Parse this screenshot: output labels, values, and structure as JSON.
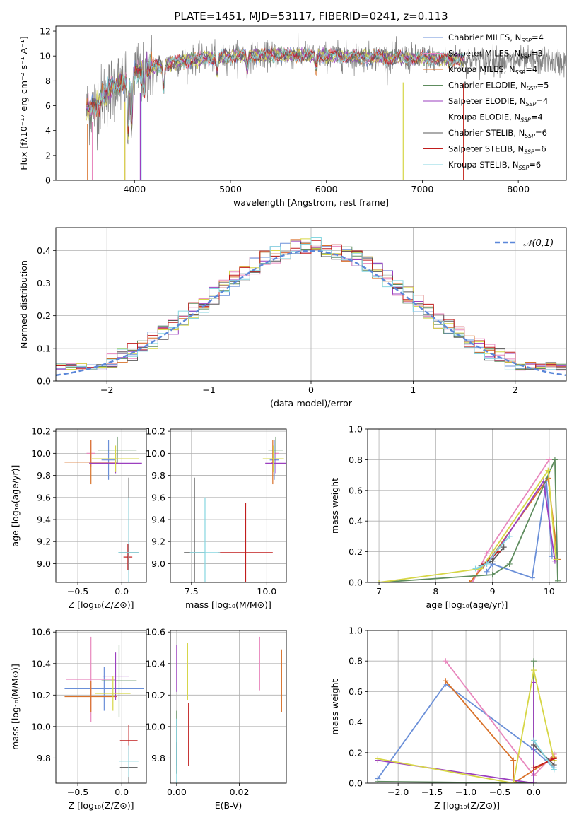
{
  "colors": {
    "Chabrier MILES": "#6a8fd8",
    "Salpeter MILES": "#e887bd",
    "Kroupa MILES": "#d9722a",
    "Chabrier ELODIE": "#5e8c5e",
    "Salpeter ELODIE": "#9b3fbf",
    "Kroupa ELODIE": "#d6d646",
    "Chabrier STELIB": "#5a5a5a",
    "Salpeter STELIB": "#c11d1d",
    "Kroupa STELIB": "#86d6e0",
    "data": "#808080",
    "normal": "#5b87d9"
  },
  "chart_data": [
    {
      "id": "spectrum",
      "type": "line",
      "title": "PLATE=1451, MJD=53117, FIBERID=0241, z=0.113",
      "xlabel": "wavelength [Angstrom, rest frame]",
      "ylabel": "Flux [fλ10⁻¹⁷ erg cm⁻² s⁻¹ A⁻¹]",
      "xlim": [
        3180,
        8500
      ],
      "ylim": [
        0,
        12.4
      ],
      "xticks": [
        4000,
        5000,
        6000,
        7000,
        8000
      ],
      "yticks": [
        0,
        2,
        4,
        6,
        8,
        10,
        12
      ],
      "legend_position": "right",
      "legend": [
        {
          "name": "Chabrier MILES",
          "nssp": "4"
        },
        {
          "name": "Salpeter MILES",
          "nssp": "3"
        },
        {
          "name": "Kroupa MILES",
          "nssp": "4"
        },
        {
          "name": "Chabrier ELODIE",
          "nssp": "5"
        },
        {
          "name": "Salpeter ELODIE",
          "nssp": "4"
        },
        {
          "name": "Kroupa ELODIE",
          "nssp": "4"
        },
        {
          "name": "Chabrier STELIB",
          "nssp": "6"
        },
        {
          "name": "Salpeter STELIB",
          "nssp": "6"
        },
        {
          "name": "Kroupa STELIB",
          "nssp": "6"
        }
      ],
      "continuum": [
        {
          "x": 3500,
          "y": 5.6
        },
        {
          "x": 3600,
          "y": 6.0
        },
        {
          "x": 3700,
          "y": 7.0
        },
        {
          "x": 3800,
          "y": 7.6
        },
        {
          "x": 3900,
          "y": 7.9
        },
        {
          "x": 4000,
          "y": 8.6
        },
        {
          "x": 4200,
          "y": 9.1
        },
        {
          "x": 4500,
          "y": 9.6
        },
        {
          "x": 5000,
          "y": 10.0
        },
        {
          "x": 5500,
          "y": 10.1
        },
        {
          "x": 6000,
          "y": 10.0
        },
        {
          "x": 6500,
          "y": 9.9
        },
        {
          "x": 7000,
          "y": 9.8
        },
        {
          "x": 7500,
          "y": 9.7
        },
        {
          "x": 8000,
          "y": 9.6
        },
        {
          "x": 8500,
          "y": 9.5
        }
      ],
      "data_range": [
        3500,
        8500
      ],
      "model_range": [
        3500,
        7430
      ],
      "absorption_features": [
        {
          "x": 3934,
          "depth": 0.55
        },
        {
          "x": 3969,
          "depth": 0.5
        },
        {
          "x": 4102,
          "depth": 0.2
        },
        {
          "x": 4304,
          "depth": 0.2
        },
        {
          "x": 4861,
          "depth": 0.12
        },
        {
          "x": 5175,
          "depth": 0.12
        },
        {
          "x": 5893,
          "depth": 0.1
        }
      ]
    },
    {
      "id": "residuals",
      "type": "step",
      "xlabel": "(data-model)/error",
      "ylabel": "Normed distribution",
      "xlim": [
        -2.5,
        2.5
      ],
      "ylim": [
        0,
        0.47
      ],
      "xticks": [
        -2,
        -1,
        0,
        1,
        2
      ],
      "yticks": [
        0,
        0.1,
        0.2,
        0.3,
        0.4
      ],
      "grid": true,
      "legend_position": "top-right",
      "reference_curve": {
        "label": "𝒩(0,1)",
        "mean": 0,
        "sigma": 1
      },
      "bin_width": 0.1
    },
    {
      "id": "age_vs_Z",
      "type": "errorbar",
      "xlabel": "Z [log₁₀(Z/Z⊙)]",
      "ylabel": "age  [log₁₀(age/yr)]",
      "xlim": [
        -0.75,
        0.28
      ],
      "ylim": [
        8.83,
        10.22
      ],
      "xticks": [
        -0.5,
        0.0
      ],
      "yticks": [
        9.0,
        9.2,
        9.4,
        9.6,
        9.8,
        10.0,
        10.2
      ],
      "grid": true,
      "points": [
        {
          "model": "Chabrier MILES",
          "x": -0.15,
          "xerr": 0.08,
          "y": 9.94,
          "yerr": 0.18
        },
        {
          "model": "Salpeter MILES",
          "x": -0.35,
          "xerr": 0.05,
          "y": 10.0,
          "yerr": 0.12
        },
        {
          "model": "Kroupa MILES",
          "x": -0.35,
          "xerr": 0.3,
          "y": 9.92,
          "yerr": 0.2
        },
        {
          "model": "Chabrier ELODIE",
          "x": -0.05,
          "xerr": 0.22,
          "y": 10.03,
          "yerr": 0.12
        },
        {
          "model": "Salpeter ELODIE",
          "x": -0.07,
          "xerr": 0.3,
          "y": 9.91,
          "yerr": 0.09
        },
        {
          "model": "Kroupa ELODIE",
          "x": -0.07,
          "xerr": 0.27,
          "y": 9.95,
          "yerr": 0.12
        },
        {
          "model": "Chabrier STELIB",
          "x": 0.08,
          "xerr": 0.11,
          "y": 9.1,
          "yerr": 0.68
        },
        {
          "model": "Salpeter STELIB",
          "x": 0.07,
          "xerr": 0.05,
          "y": 9.06,
          "yerr": 0.12
        },
        {
          "model": "Kroupa STELIB",
          "x": 0.08,
          "xerr": 0.12,
          "y": 9.1,
          "yerr": 0.5
        }
      ]
    },
    {
      "id": "age_vs_mass",
      "type": "errorbar",
      "xlabel": "mass [log₁₀(M/M⊙)]",
      "xlim": [
        6.8,
        10.65
      ],
      "ylim": [
        8.83,
        10.22
      ],
      "xticks": [
        7.5,
        10.0
      ],
      "yticks": [
        9.0,
        9.2,
        9.4,
        9.6,
        9.8,
        10.0,
        10.2
      ],
      "grid": true,
      "points": [
        {
          "model": "Chabrier MILES",
          "x": 10.25,
          "xerr": 0.15,
          "y": 9.94,
          "yerr": 0.18
        },
        {
          "model": "Salpeter MILES",
          "x": 10.3,
          "xerr": 0.1,
          "y": 10.0,
          "yerr": 0.12
        },
        {
          "model": "Kroupa MILES",
          "x": 10.2,
          "xerr": 0.05,
          "y": 9.92,
          "yerr": 0.2
        },
        {
          "model": "Chabrier ELODIE",
          "x": 10.3,
          "xerr": 0.25,
          "y": 10.03,
          "yerr": 0.12
        },
        {
          "model": "Salpeter ELODIE",
          "x": 10.3,
          "xerr": 0.35,
          "y": 9.91,
          "yerr": 0.09
        },
        {
          "model": "Kroupa ELODIE",
          "x": 10.22,
          "xerr": 0.35,
          "y": 9.95,
          "yerr": 0.12
        },
        {
          "model": "Chabrier STELIB",
          "x": 7.6,
          "xerr": 0.35,
          "y": 9.1,
          "yerr": 0.68
        },
        {
          "model": "Salpeter STELIB",
          "x": 9.3,
          "xerr": 0.9,
          "y": 9.1,
          "yerr": 0.45
        },
        {
          "model": "Kroupa STELIB",
          "x": 7.95,
          "xerr": 0.5,
          "y": 9.1,
          "yerr": 0.5
        }
      ]
    },
    {
      "id": "mass_weight_vs_age",
      "type": "line",
      "xlabel": "age  [log₁₀(age/yr)]",
      "ylabel": "mass weight",
      "xlim": [
        6.8,
        10.3
      ],
      "ylim": [
        0,
        1.0
      ],
      "xticks": [
        7,
        8,
        9,
        10
      ],
      "yticks": [
        0.0,
        0.2,
        0.4,
        0.6,
        0.8,
        1.0
      ],
      "grid": true,
      "series": [
        {
          "model": "Chabrier MILES",
          "points": [
            [
              8.9,
              0.07
            ],
            [
              9.0,
              0.12
            ],
            [
              9.7,
              0.03
            ],
            [
              9.95,
              0.66
            ],
            [
              10.05,
              0.17
            ]
          ]
        },
        {
          "model": "Salpeter MILES",
          "points": [
            [
              8.65,
              0.0
            ],
            [
              8.9,
              0.19
            ],
            [
              10.0,
              0.8
            ]
          ]
        },
        {
          "model": "Kroupa MILES",
          "points": [
            [
              8.6,
              0.0
            ],
            [
              8.95,
              0.15
            ],
            [
              9.98,
              0.68
            ],
            [
              10.15,
              0.15
            ]
          ]
        },
        {
          "model": "Chabrier ELODIE",
          "points": [
            [
              7.0,
              0.0
            ],
            [
              9.0,
              0.05
            ],
            [
              9.3,
              0.12
            ],
            [
              10.1,
              0.8
            ],
            [
              10.15,
              0.01
            ]
          ]
        },
        {
          "model": "Salpeter ELODIE",
          "points": [
            [
              8.8,
              0.1
            ],
            [
              9.0,
              0.16
            ],
            [
              9.9,
              0.66
            ],
            [
              10.1,
              0.14
            ]
          ]
        },
        {
          "model": "Kroupa ELODIE",
          "points": [
            [
              7.0,
              0.0
            ],
            [
              8.8,
              0.09
            ],
            [
              9.98,
              0.73
            ],
            [
              10.12,
              0.15
            ]
          ]
        },
        {
          "model": "Chabrier STELIB",
          "points": [
            [
              8.8,
              0.11
            ],
            [
              9.0,
              0.14
            ],
            [
              9.2,
              0.23
            ]
          ]
        },
        {
          "model": "Salpeter STELIB",
          "points": [
            [
              8.85,
              0.12
            ],
            [
              9.1,
              0.2
            ]
          ]
        },
        {
          "model": "Kroupa STELIB",
          "points": [
            [
              8.7,
              0.09
            ],
            [
              8.9,
              0.12
            ],
            [
              9.1,
              0.22
            ],
            [
              9.3,
              0.3
            ]
          ]
        }
      ]
    },
    {
      "id": "mass_vs_Z",
      "type": "errorbar",
      "xlabel": "Z [log₁₀(Z/Z⊙)]",
      "ylabel": "mass [log₁₀(M/M⊙)]",
      "xlim": [
        -0.75,
        0.28
      ],
      "ylim": [
        9.64,
        10.61
      ],
      "xticks": [
        -0.5,
        0.0
      ],
      "yticks": [
        9.8,
        10.0,
        10.2,
        10.4,
        10.6
      ],
      "grid": true,
      "points": [
        {
          "model": "Chabrier MILES",
          "x": -0.2,
          "xerr": 0.45,
          "y": 10.24,
          "yerr": 0.14
        },
        {
          "model": "Salpeter MILES",
          "x": -0.35,
          "xerr": 0.28,
          "y": 10.3,
          "yerr": 0.27
        },
        {
          "model": "Kroupa MILES",
          "x": -0.35,
          "xerr": 0.3,
          "y": 10.19,
          "yerr": 0.1
        },
        {
          "model": "Chabrier ELODIE",
          "x": -0.03,
          "xerr": 0.2,
          "y": 10.29,
          "yerr": 0.23
        },
        {
          "model": "Salpeter ELODIE",
          "x": -0.07,
          "xerr": 0.15,
          "y": 10.32,
          "yerr": 0.15
        },
        {
          "model": "Kroupa ELODIE",
          "x": -0.1,
          "xerr": 0.2,
          "y": 10.21,
          "yerr": 0.11
        },
        {
          "model": "Chabrier STELIB",
          "x": 0.08,
          "xerr": 0.1,
          "y": 9.74,
          "yerr": 0.1
        },
        {
          "model": "Salpeter STELIB",
          "x": 0.08,
          "xerr": 0.1,
          "y": 9.91,
          "yerr": 0.1
        },
        {
          "model": "Kroupa STELIB",
          "x": 0.08,
          "xerr": 0.11,
          "y": 9.78,
          "yerr": 0.1
        }
      ]
    },
    {
      "id": "mass_vs_EBV",
      "type": "errorbar",
      "xlabel": "E(B-V)",
      "xlim": [
        -0.002,
        0.035
      ],
      "ylim": [
        9.64,
        10.61
      ],
      "xticks": [
        0.0,
        0.02
      ],
      "yticks": [
        9.8,
        10.0,
        10.2,
        10.4,
        10.6
      ],
      "grid": true,
      "points": [
        {
          "model": "Chabrier MILES",
          "x": 0.0,
          "xerr": 0,
          "y": 9.9,
          "yerr": 0.15
        },
        {
          "model": "Salpeter MILES",
          "x": 0.0265,
          "xerr": 0,
          "y": 10.4,
          "yerr": 0.17
        },
        {
          "model": "Kroupa MILES",
          "x": 0.0335,
          "xerr": 0,
          "y": 10.29,
          "yerr": 0.2
        },
        {
          "model": "Chabrier ELODIE",
          "x": 0.0,
          "xerr": 0,
          "y": 9.9,
          "yerr": 0.2
        },
        {
          "model": "Salpeter ELODIE",
          "x": 0.0,
          "xerr": 0,
          "y": 10.37,
          "yerr": 0.15
        },
        {
          "model": "Kroupa ELODIE",
          "x": 0.0035,
          "xerr": 0,
          "y": 10.35,
          "yerr": 0.18
        },
        {
          "model": "Chabrier STELIB",
          "x": 0.0,
          "xerr": 0,
          "y": 9.8,
          "yerr": 0.1
        },
        {
          "model": "Salpeter STELIB",
          "x": 0.0038,
          "xerr": 0,
          "y": 9.95,
          "yerr": 0.2
        },
        {
          "model": "Kroupa STELIB",
          "x": 0.0,
          "xerr": 0,
          "y": 9.83,
          "yerr": 0.22
        }
      ]
    },
    {
      "id": "mass_weight_vs_Z",
      "type": "line",
      "xlabel": "Z [log₁₀(Z/Z⊙)]",
      "ylabel": "mass weight",
      "xlim": [
        -2.45,
        0.48
      ],
      "ylim": [
        0,
        1.0
      ],
      "xticks": [
        -2.0,
        -1.5,
        -1.0,
        -0.5,
        0.0
      ],
      "yticks": [
        0.0,
        0.2,
        0.4,
        0.6,
        0.8,
        1.0
      ],
      "grid": true,
      "series": [
        {
          "model": "Chabrier MILES",
          "points": [
            [
              -2.3,
              0.03
            ],
            [
              -1.3,
              0.65
            ],
            [
              0.0,
              0.22
            ],
            [
              0.3,
              0.1
            ]
          ]
        },
        {
          "model": "Salpeter MILES",
          "points": [
            [
              -1.3,
              0.8
            ],
            [
              0.0,
              0.05
            ],
            [
              0.3,
              0.19
            ]
          ]
        },
        {
          "model": "Kroupa MILES",
          "points": [
            [
              -1.3,
              0.67
            ],
            [
              -0.3,
              0.15
            ],
            [
              -0.3,
              0.0
            ],
            [
              0.3,
              0.17
            ]
          ]
        },
        {
          "model": "Chabrier ELODIE",
          "points": [
            [
              -2.3,
              0.01
            ],
            [
              0.0,
              0.0
            ],
            [
              0.0,
              0.8
            ]
          ]
        },
        {
          "model": "Salpeter ELODIE",
          "points": [
            [
              -2.3,
              0.15
            ],
            [
              0.0,
              0.0
            ],
            [
              0.0,
              0.66
            ]
          ]
        },
        {
          "model": "Kroupa ELODIE",
          "points": [
            [
              -2.3,
              0.16
            ],
            [
              -0.3,
              0.0
            ],
            [
              0.0,
              0.74
            ],
            [
              0.3,
              0.15
            ]
          ]
        },
        {
          "model": "Chabrier STELIB",
          "points": [
            [
              0.0,
              0.25
            ],
            [
              0.3,
              0.12
            ]
          ]
        },
        {
          "model": "Salpeter STELIB",
          "points": [
            [
              0.0,
              0.1
            ],
            [
              0.3,
              0.16
            ]
          ]
        },
        {
          "model": "Kroupa STELIB",
          "points": [
            [
              0.0,
              0.28
            ],
            [
              0.3,
              0.09
            ]
          ]
        }
      ]
    }
  ]
}
